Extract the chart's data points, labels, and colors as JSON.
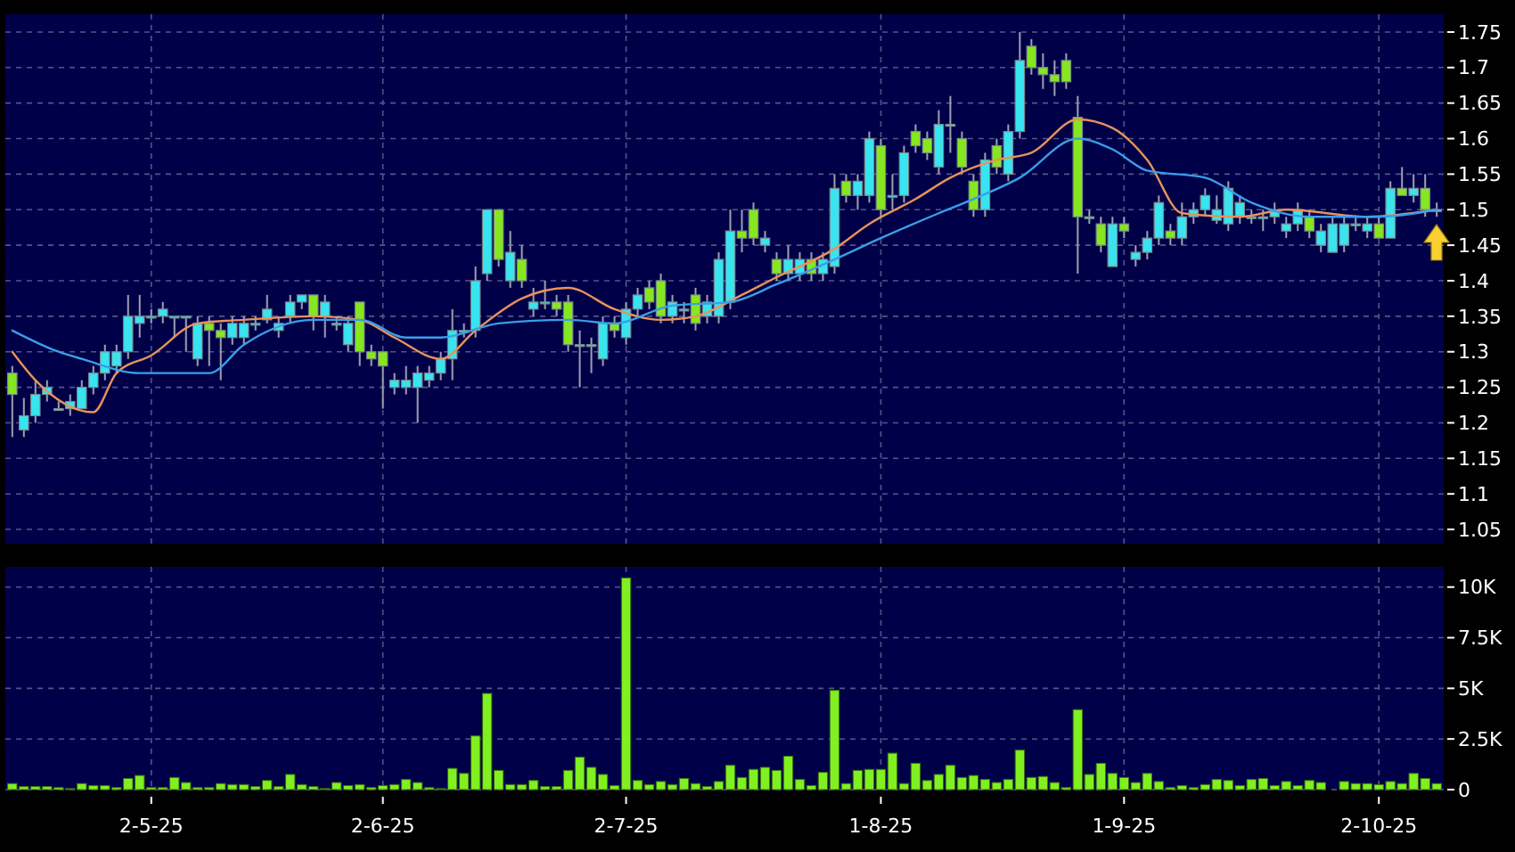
{
  "chart_data": [
    {
      "type": "candlestick",
      "categories": [
        null,
        null,
        null,
        null,
        null,
        null,
        null,
        null,
        null,
        null,
        null,
        null,
        null,
        null,
        null,
        null,
        null,
        null,
        null,
        null,
        null,
        null,
        null,
        null,
        null,
        null,
        null,
        null,
        null,
        null,
        null,
        null,
        null,
        null,
        null,
        null,
        null,
        null,
        null,
        null,
        null,
        null,
        null,
        null,
        null,
        null,
        null,
        null,
        null,
        null,
        null,
        null,
        null,
        null,
        null,
        null,
        null,
        null,
        null,
        null,
        null,
        null,
        null,
        null,
        null,
        null,
        null,
        null,
        null,
        null,
        null,
        null,
        null,
        null,
        null,
        null,
        null,
        null,
        null,
        null,
        null,
        null,
        null,
        null,
        null,
        null,
        null,
        null,
        null,
        null,
        null,
        null,
        null,
        null,
        null,
        null,
        null,
        null,
        null,
        null,
        null,
        null,
        null,
        null,
        null,
        null,
        null,
        null,
        null,
        null,
        null,
        null,
        null,
        null,
        null,
        null,
        null,
        null,
        null,
        null,
        null,
        null,
        null,
        null
      ],
      "ohlc": [
        [
          1.27,
          1.28,
          1.18,
          1.24
        ],
        [
          1.19,
          1.235,
          1.18,
          1.21
        ],
        [
          1.21,
          1.26,
          1.2,
          1.24
        ],
        [
          1.24,
          1.26,
          1.23,
          1.25
        ],
        [
          1.22,
          1.23,
          1.22,
          1.22
        ],
        [
          1.22,
          1.24,
          1.21,
          1.23
        ],
        [
          1.22,
          1.26,
          1.22,
          1.25
        ],
        [
          1.25,
          1.28,
          1.24,
          1.27
        ],
        [
          1.27,
          1.31,
          1.26,
          1.3
        ],
        [
          1.28,
          1.31,
          1.27,
          1.3
        ],
        [
          1.3,
          1.38,
          1.29,
          1.35
        ],
        [
          1.34,
          1.38,
          1.32,
          1.35
        ],
        [
          1.35,
          1.36,
          1.34,
          1.35
        ],
        [
          1.35,
          1.37,
          1.34,
          1.36
        ],
        [
          1.35,
          1.35,
          1.32,
          1.35
        ],
        [
          1.35,
          1.35,
          1.3,
          1.35
        ],
        [
          1.29,
          1.35,
          1.28,
          1.34
        ],
        [
          1.34,
          1.35,
          1.28,
          1.33
        ],
        [
          1.33,
          1.34,
          1.26,
          1.32
        ],
        [
          1.32,
          1.35,
          1.31,
          1.34
        ],
        [
          1.32,
          1.35,
          1.31,
          1.34
        ],
        [
          1.34,
          1.35,
          1.33,
          1.34
        ],
        [
          1.345,
          1.38,
          1.34,
          1.36
        ],
        [
          1.33,
          1.35,
          1.32,
          1.34
        ],
        [
          1.35,
          1.38,
          1.34,
          1.37
        ],
        [
          1.37,
          1.38,
          1.36,
          1.38
        ],
        [
          1.38,
          1.38,
          1.33,
          1.35
        ],
        [
          1.35,
          1.38,
          1.32,
          1.37
        ],
        [
          1.34,
          1.35,
          1.33,
          1.34
        ],
        [
          1.31,
          1.35,
          1.3,
          1.34
        ],
        [
          1.37,
          1.37,
          1.28,
          1.3
        ],
        [
          1.3,
          1.31,
          1.28,
          1.29
        ],
        [
          1.3,
          1.3,
          1.22,
          1.28
        ],
        [
          1.25,
          1.27,
          1.24,
          1.26
        ],
        [
          1.25,
          1.28,
          1.24,
          1.26
        ],
        [
          1.25,
          1.28,
          1.2,
          1.27
        ],
        [
          1.26,
          1.28,
          1.25,
          1.27
        ],
        [
          1.27,
          1.3,
          1.26,
          1.29
        ],
        [
          1.29,
          1.36,
          1.26,
          1.33
        ],
        [
          1.33,
          1.34,
          1.32,
          1.33
        ],
        [
          1.33,
          1.42,
          1.32,
          1.4
        ],
        [
          1.41,
          1.5,
          1.4,
          1.5
        ],
        [
          1.5,
          1.5,
          1.42,
          1.43
        ],
        [
          1.4,
          1.47,
          1.39,
          1.44
        ],
        [
          1.43,
          1.45,
          1.39,
          1.4
        ],
        [
          1.36,
          1.39,
          1.35,
          1.37
        ],
        [
          1.37,
          1.4,
          1.36,
          1.37
        ],
        [
          1.37,
          1.38,
          1.35,
          1.36
        ],
        [
          1.37,
          1.38,
          1.3,
          1.31
        ],
        [
          1.31,
          1.33,
          1.25,
          1.31
        ],
        [
          1.31,
          1.32,
          1.27,
          1.31
        ],
        [
          1.29,
          1.35,
          1.28,
          1.34
        ],
        [
          1.34,
          1.35,
          1.32,
          1.33
        ],
        [
          1.32,
          1.37,
          1.31,
          1.36
        ],
        [
          1.36,
          1.39,
          1.35,
          1.38
        ],
        [
          1.39,
          1.4,
          1.36,
          1.37
        ],
        [
          1.4,
          1.41,
          1.34,
          1.35
        ],
        [
          1.35,
          1.38,
          1.34,
          1.37
        ],
        [
          1.36,
          1.37,
          1.34,
          1.36
        ],
        [
          1.38,
          1.39,
          1.33,
          1.34
        ],
        [
          1.35,
          1.38,
          1.34,
          1.37
        ],
        [
          1.35,
          1.44,
          1.34,
          1.43
        ],
        [
          1.37,
          1.5,
          1.36,
          1.47
        ],
        [
          1.47,
          1.5,
          1.44,
          1.46
        ],
        [
          1.5,
          1.51,
          1.45,
          1.46
        ],
        [
          1.45,
          1.47,
          1.44,
          1.46
        ],
        [
          1.43,
          1.44,
          1.4,
          1.41
        ],
        [
          1.41,
          1.45,
          1.4,
          1.43
        ],
        [
          1.41,
          1.44,
          1.4,
          1.43
        ],
        [
          1.43,
          1.44,
          1.4,
          1.41
        ],
        [
          1.41,
          1.44,
          1.4,
          1.43
        ],
        [
          1.42,
          1.55,
          1.41,
          1.53
        ],
        [
          1.54,
          1.55,
          1.51,
          1.52
        ],
        [
          1.52,
          1.55,
          1.5,
          1.54
        ],
        [
          1.52,
          1.61,
          1.51,
          1.6
        ],
        [
          1.59,
          1.6,
          1.49,
          1.5
        ],
        [
          1.52,
          1.55,
          1.5,
          1.52
        ],
        [
          1.52,
          1.59,
          1.51,
          1.58
        ],
        [
          1.61,
          1.62,
          1.58,
          1.59
        ],
        [
          1.6,
          1.61,
          1.57,
          1.58
        ],
        [
          1.56,
          1.64,
          1.55,
          1.62
        ],
        [
          1.62,
          1.66,
          1.58,
          1.62
        ],
        [
          1.6,
          1.61,
          1.55,
          1.56
        ],
        [
          1.54,
          1.55,
          1.49,
          1.5
        ],
        [
          1.5,
          1.58,
          1.49,
          1.57
        ],
        [
          1.59,
          1.6,
          1.55,
          1.56
        ],
        [
          1.55,
          1.62,
          1.54,
          1.61
        ],
        [
          1.61,
          1.75,
          1.6,
          1.71
        ],
        [
          1.73,
          1.74,
          1.69,
          1.7
        ],
        [
          1.7,
          1.72,
          1.67,
          1.69
        ],
        [
          1.69,
          1.71,
          1.66,
          1.68
        ],
        [
          1.71,
          1.72,
          1.67,
          1.68
        ],
        [
          1.63,
          1.66,
          1.41,
          1.49
        ],
        [
          1.49,
          1.5,
          1.48,
          1.49
        ],
        [
          1.48,
          1.49,
          1.44,
          1.45
        ],
        [
          1.42,
          1.49,
          1.42,
          1.48
        ],
        [
          1.48,
          1.49,
          1.46,
          1.47
        ],
        [
          1.43,
          1.45,
          1.42,
          1.44
        ],
        [
          1.44,
          1.47,
          1.43,
          1.46
        ],
        [
          1.46,
          1.52,
          1.45,
          1.51
        ],
        [
          1.47,
          1.48,
          1.45,
          1.46
        ],
        [
          1.46,
          1.51,
          1.45,
          1.49
        ],
        [
          1.49,
          1.51,
          1.48,
          1.5
        ],
        [
          1.5,
          1.53,
          1.49,
          1.52
        ],
        [
          1.485,
          1.52,
          1.48,
          1.5
        ],
        [
          1.48,
          1.54,
          1.47,
          1.53
        ],
        [
          1.49,
          1.52,
          1.48,
          1.51
        ],
        [
          1.49,
          1.5,
          1.48,
          1.49
        ],
        [
          1.49,
          1.5,
          1.47,
          1.49
        ],
        [
          1.49,
          1.51,
          1.48,
          1.5
        ],
        [
          1.47,
          1.49,
          1.46,
          1.48
        ],
        [
          1.48,
          1.51,
          1.47,
          1.5
        ],
        [
          1.49,
          1.5,
          1.46,
          1.47
        ],
        [
          1.45,
          1.48,
          1.44,
          1.47
        ],
        [
          1.44,
          1.49,
          1.44,
          1.48
        ],
        [
          1.45,
          1.49,
          1.44,
          1.48
        ],
        [
          1.48,
          1.49,
          1.47,
          1.48
        ],
        [
          1.47,
          1.49,
          1.46,
          1.48
        ],
        [
          1.48,
          1.49,
          1.46,
          1.46
        ],
        [
          1.46,
          1.54,
          1.46,
          1.53
        ],
        [
          1.53,
          1.56,
          1.52,
          1.52
        ],
        [
          1.52,
          1.55,
          1.51,
          1.53
        ],
        [
          1.53,
          1.55,
          1.49,
          1.5
        ],
        [
          1.5,
          1.51,
          1.49,
          1.5
        ]
      ],
      "colors": [
        "#86e620",
        "#38e4f0",
        "#38e4f0",
        "#38e4f0",
        "#38e4f0",
        "#38e4f0",
        "#38e4f0",
        "#38e4f0",
        "#38e4f0",
        "#38e4f0",
        "#38e4f0",
        "#38e4f0",
        "#38e4f0",
        "#38e4f0",
        "#38e4f0",
        "#38e4f0",
        "#38e4f0",
        "#86e620",
        "#86e620",
        "#38e4f0",
        "#38e4f0",
        "#38e4f0",
        "#38e4f0",
        "#38e4f0",
        "#38e4f0",
        "#38e4f0",
        "#86e620",
        "#38e4f0",
        "#38e4f0",
        "#38e4f0",
        "#86e620",
        "#86e620",
        "#86e620",
        "#38e4f0",
        "#38e4f0",
        "#38e4f0",
        "#38e4f0",
        "#38e4f0",
        "#38e4f0",
        "#38e4f0",
        "#38e4f0",
        "#38e4f0",
        "#86e620",
        "#38e4f0",
        "#86e620",
        "#38e4f0",
        "#38e4f0",
        "#86e620",
        "#86e620",
        "#38e4f0",
        "#38e4f0",
        "#38e4f0",
        "#86e620",
        "#38e4f0",
        "#38e4f0",
        "#86e620",
        "#86e620",
        "#38e4f0",
        "#38e4f0",
        "#86e620",
        "#38e4f0",
        "#38e4f0",
        "#38e4f0",
        "#86e620",
        "#86e620",
        "#38e4f0",
        "#86e620",
        "#38e4f0",
        "#38e4f0",
        "#86e620",
        "#38e4f0",
        "#38e4f0",
        "#86e620",
        "#38e4f0",
        "#38e4f0",
        "#86e620",
        "#38e4f0",
        "#38e4f0",
        "#86e620",
        "#86e620",
        "#38e4f0",
        "#38e4f0",
        "#86e620",
        "#86e620",
        "#38e4f0",
        "#86e620",
        "#38e4f0",
        "#38e4f0",
        "#86e620",
        "#86e620",
        "#86e620",
        "#86e620",
        "#86e620",
        "#38e4f0",
        "#86e620",
        "#38e4f0",
        "#86e620",
        "#38e4f0",
        "#38e4f0",
        "#38e4f0",
        "#86e620",
        "#38e4f0",
        "#38e4f0",
        "#38e4f0",
        "#38e4f0",
        "#38e4f0",
        "#38e4f0",
        "#38e4f0",
        "#38e4f0",
        "#38e4f0",
        "#38e4f0",
        "#38e4f0",
        "#86e620",
        "#38e4f0",
        "#38e4f0",
        "#38e4f0",
        "#38e4f0",
        "#38e4f0",
        "#86e620",
        "#38e4f0",
        "#86e620",
        "#38e4f0",
        "#86e620",
        "#38e4f0"
      ],
      "series": [
        {
          "type": "line",
          "color": "#e8925c",
          "values": [
            1.3,
            null,
            1.26,
            null,
            null,
            null,
            null,
            1.215,
            null,
            1.27,
            null,
            null,
            1.295,
            null,
            null,
            null,
            1.34,
            null,
            null,
            null,
            1.345,
            null,
            null,
            null,
            null,
            null,
            1.35,
            null,
            null,
            null,
            1.345,
            null,
            null,
            1.32,
            null,
            null,
            null,
            1.29,
            null,
            null,
            1.33,
            null,
            null,
            null,
            1.375,
            null,
            null,
            null,
            1.39,
            null,
            null,
            null,
            1.36,
            null,
            null,
            null,
            1.345,
            null,
            null,
            1.35,
            null,
            null,
            null,
            1.38,
            null,
            null,
            1.405,
            null,
            null,
            null,
            null,
            1.445,
            null,
            null,
            1.48,
            null,
            null,
            null,
            1.515,
            null,
            null,
            1.545,
            null,
            null,
            null,
            1.57,
            null,
            null,
            1.58,
            null,
            null,
            null,
            1.627,
            null,
            null,
            1.615,
            null,
            null,
            1.57,
            null,
            null,
            1.495,
            null,
            null,
            null,
            null,
            1.49,
            null,
            null,
            null,
            1.5,
            null,
            null,
            null,
            null,
            null,
            null,
            1.49,
            null,
            null,
            null,
            null,
            null,
            1.5
          ]
        },
        {
          "type": "line",
          "color": "#3a9ee8",
          "values": [
            1.33,
            null,
            null,
            null,
            1.3,
            null,
            1.29,
            null,
            null,
            null,
            null,
            1.27,
            null,
            null,
            null,
            null,
            null,
            1.27,
            null,
            null,
            1.31,
            null,
            null,
            null,
            null,
            null,
            1.345,
            null,
            null,
            null,
            1.345,
            null,
            null,
            null,
            1.32,
            null,
            null,
            1.32,
            null,
            null,
            null,
            null,
            1.34,
            null,
            null,
            null,
            null,
            null,
            1.345,
            null,
            null,
            null,
            1.34,
            null,
            null,
            null,
            null,
            1.365,
            null,
            null,
            null,
            null,
            1.37,
            null,
            null,
            null,
            1.395,
            null,
            null,
            null,
            null,
            1.43,
            null,
            null,
            null,
            1.46,
            null,
            null,
            null,
            null,
            1.495,
            null,
            null,
            1.515,
            null,
            null,
            null,
            1.545,
            null,
            null,
            null,
            null,
            1.6,
            null,
            null,
            1.585,
            null,
            null,
            1.555,
            null,
            null,
            null,
            null,
            1.545,
            null,
            null,
            null,
            1.51,
            null,
            null,
            null,
            null,
            1.49,
            null,
            null,
            null,
            null,
            null,
            1.49,
            null,
            null,
            null,
            null,
            1.5
          ]
        }
      ],
      "ylim": [
        1.03,
        1.775
      ],
      "yticks": [
        1.05,
        1.1,
        1.15,
        1.2,
        1.25,
        1.3,
        1.35,
        1.4,
        1.45,
        1.5,
        1.55,
        1.6,
        1.65,
        1.7,
        1.75
      ],
      "grid": true,
      "tick_labels": "y"
    },
    {
      "type": "bar",
      "categories": [
        null,
        null,
        null,
        null,
        null,
        null,
        null,
        null,
        null,
        null,
        null,
        null,
        "2-5-25",
        null,
        null,
        null,
        null,
        null,
        null,
        null,
        null,
        null,
        null,
        null,
        null,
        null,
        null,
        null,
        null,
        null,
        null,
        null,
        "2-6-25",
        null,
        null,
        null,
        null,
        null,
        null,
        null,
        null,
        null,
        null,
        null,
        null,
        null,
        null,
        null,
        null,
        null,
        null,
        null,
        null,
        "2-7-25",
        null,
        null,
        null,
        null,
        null,
        null,
        null,
        null,
        null,
        null,
        null,
        null,
        null,
        null,
        null,
        null,
        null,
        null,
        null,
        null,
        null,
        "1-8-25",
        null,
        null,
        null,
        null,
        null,
        null,
        null,
        null,
        null,
        null,
        null,
        null,
        null,
        null,
        null,
        null,
        null,
        null,
        null,
        null,
        "1-9-25",
        null,
        null,
        null,
        null,
        null,
        null,
        null,
        null,
        null,
        null,
        null,
        null,
        null,
        null,
        null,
        null,
        null,
        null,
        null,
        null,
        null,
        "2-10-25",
        null,
        null,
        null,
        null,
        null
      ],
      "values": [
        0.3,
        0.15,
        0.15,
        0.15,
        0.1,
        0.05,
        0.3,
        0.2,
        0.2,
        0.1,
        0.55,
        0.7,
        0.1,
        0.1,
        0.6,
        0.35,
        0.1,
        0.1,
        0.3,
        0.25,
        0.25,
        0.15,
        0.45,
        0.15,
        0.75,
        0.25,
        0.15,
        0.05,
        0.35,
        0.2,
        0.25,
        0.1,
        0.2,
        0.25,
        0.5,
        0.35,
        0.1,
        0.05,
        1.05,
        0.8,
        2.65,
        4.75,
        0.95,
        0.25,
        0.25,
        0.45,
        0.15,
        0.15,
        0.95,
        1.6,
        1.1,
        0.75,
        0.2,
        10.45,
        0.45,
        0.25,
        0.4,
        0.25,
        0.55,
        0.3,
        0.15,
        0.4,
        1.2,
        0.6,
        1.0,
        1.1,
        0.95,
        1.65,
        0.5,
        0.2,
        0.85,
        4.9,
        0.3,
        0.95,
        1.0,
        1.0,
        1.8,
        0.3,
        1.3,
        0.45,
        0.75,
        1.2,
        0.6,
        0.7,
        0.5,
        0.35,
        0.5,
        1.95,
        0.6,
        0.65,
        0.35,
        0.1,
        3.95,
        0.75,
        1.3,
        0.8,
        0.6,
        0.35,
        0.8,
        0.4,
        0.1,
        0.2,
        0.1,
        0.25,
        0.5,
        0.45,
        0.2,
        0.5,
        0.55,
        0.2,
        0.4,
        0.2,
        0.45,
        0.35,
        0,
        0.4,
        0.3,
        0.3,
        0.25,
        0.4,
        0.3,
        0.8,
        0.55,
        0.3
      ],
      "color": "#80f020",
      "ylim": [
        0,
        11
      ],
      "yticks": [
        0,
        {
          "value": 2.5,
          "label": "2.5K"
        },
        {
          "value": 5,
          "label": "5K"
        },
        {
          "value": 7.5,
          "label": "7.5K"
        },
        {
          "value": 10,
          "label": "10K"
        }
      ],
      "grid": true
    }
  ]
}
